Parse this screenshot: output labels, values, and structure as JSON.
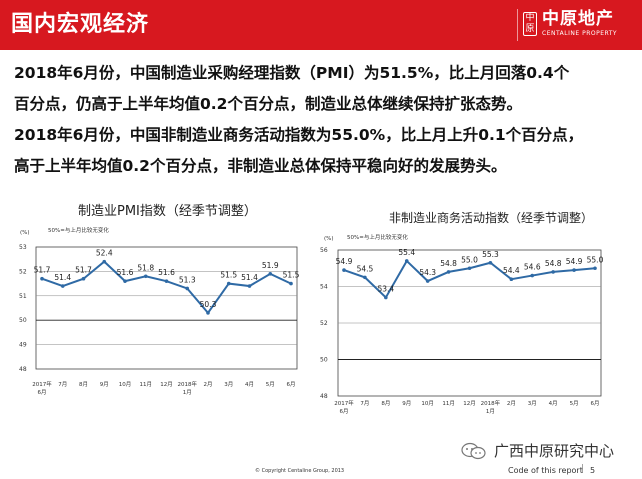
{
  "header": {
    "title": "国内宏观经济",
    "logo_cn": "中原地产",
    "logo_en": "CENTALINE PROPERTY",
    "logo_mark": "中原"
  },
  "body": {
    "line1": "2018年6月份，中国制造业采购经理指数（PMI）为51.5%，比上月回落0.4个",
    "line2": "百分点，仍高于上半年均值0.2个百分点，制造业总体继续保持扩张态势。",
    "line3": "2018年6月份，中国非制造业商务活动指数为55.0%，比上月上升0.1个百分点，",
    "line4": "高于上半年均值0.2个百分点，非制造业总体保持平稳向好的发展势头。"
  },
  "footer": {
    "copyright": "© Copyright Centaline Group, 2013",
    "watermark": "广西中原研究中心",
    "code": "Code of this report",
    "separator": "|",
    "page": "5"
  },
  "colors": {
    "brand_red": "#d7181f",
    "line": "#2f6aa5"
  },
  "chart_data": [
    {
      "type": "line",
      "title": "制造业PMI指数（经季节调整）",
      "ylabel": "(%)",
      "legend_note": "50%=与上月比较无变化",
      "categories": [
        [
          "2017年",
          "6月"
        ],
        [
          "7月"
        ],
        [
          "8月"
        ],
        [
          "9月"
        ],
        [
          "10月"
        ],
        [
          "11月"
        ],
        [
          "12月"
        ],
        [
          "2018年",
          "1月"
        ],
        [
          "2月"
        ],
        [
          "3月"
        ],
        [
          "4月"
        ],
        [
          "5月"
        ],
        [
          "6月"
        ]
      ],
      "values": [
        51.7,
        51.4,
        51.7,
        52.4,
        51.6,
        51.8,
        51.6,
        51.3,
        50.3,
        51.5,
        51.4,
        51.9,
        51.5
      ],
      "value_labels": [
        "51.7",
        "51.4",
        "51.7",
        "52.4",
        "51.6",
        "51.8",
        "51.6",
        "51.3",
        "50.3",
        "51.5",
        "51.4",
        "51.9",
        "51.5"
      ],
      "ylim": [
        48,
        53
      ],
      "yticks": [
        48,
        49,
        50,
        51,
        52,
        53
      ],
      "ytick_labels": [
        "48",
        "49",
        "50",
        "51",
        "52",
        "53"
      ],
      "grid": true,
      "reference_line": 50
    },
    {
      "type": "line",
      "title": "非制造业商务活动指数（经季节调整）",
      "ylabel": "(%)",
      "legend_note": "50%=与上月比较无变化",
      "categories": [
        [
          "2017年",
          "6月"
        ],
        [
          "7月"
        ],
        [
          "8月"
        ],
        [
          "9月"
        ],
        [
          "10月"
        ],
        [
          "11月"
        ],
        [
          "12月"
        ],
        [
          "2018年",
          "1月"
        ],
        [
          "2月"
        ],
        [
          "3月"
        ],
        [
          "4月"
        ],
        [
          "5月"
        ],
        [
          "6月"
        ]
      ],
      "values": [
        54.9,
        54.5,
        53.4,
        55.4,
        54.3,
        54.8,
        55.0,
        55.3,
        54.4,
        54.6,
        54.8,
        54.9,
        55.0
      ],
      "value_labels": [
        "54.9",
        "54.5",
        "53.4",
        "55.4",
        "54.3",
        "54.8",
        "55.0",
        "55.3",
        "54.4",
        "54.6",
        "54.8",
        "54.9",
        "55.0"
      ],
      "ylim": [
        48,
        56
      ],
      "yticks": [
        48,
        50,
        52,
        54,
        56
      ],
      "ytick_labels": [
        "48",
        "50",
        "52",
        "54",
        "56"
      ],
      "grid": true,
      "reference_line": 50
    }
  ]
}
